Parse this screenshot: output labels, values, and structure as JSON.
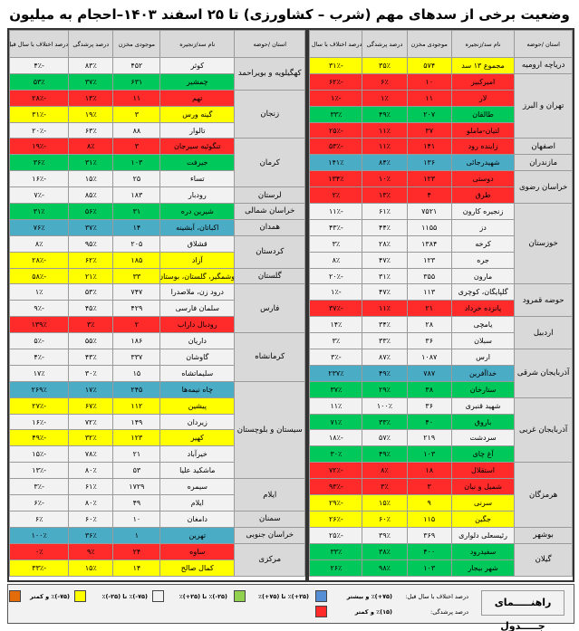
{
  "title": "وضعیت برخی از سدهای مهم (شرب – کشاورزی) تا ۲۵ اسفند ۱۴۰۳–احجام به میلیون مترمکعب",
  "columns": {
    "province": "استان /حوضه",
    "dam": "نام سد/زنجیره",
    "storage": "موجودی مخزن",
    "fill_pct": "درصد پرشدگی",
    "diff_pct": "درصد اختلاف با سال قبل"
  },
  "colors": {
    "yellow": "#ffff00",
    "red": "#ff2a2a",
    "green": "#00c85a",
    "blue": "#4bacc6",
    "white": "#f2f2f2",
    "header_gray": "#d9d9d9",
    "legend_orange": "#e36c09",
    "legend_green": "#92d050",
    "legend_blue": "#558ed5"
  },
  "right_table": [
    {
      "province": "دریاچه ارومیه",
      "rows": [
        {
          "dam": "مجموع ۱۳ سد",
          "storage": "۵۷۴",
          "fill": "۳۵٪",
          "diff": "-۳۱٪",
          "color": "yellow"
        }
      ]
    },
    {
      "province": "تهران و البرز",
      "rows": [
        {
          "dam": "امیرکبیر",
          "storage": "۱۰",
          "fill": "۶٪",
          "diff": "-۶۲٪",
          "color": "red"
        },
        {
          "dam": "لار",
          "storage": "۱۱",
          "fill": "۱٪",
          "diff": "-۱٪",
          "color": "red"
        },
        {
          "dam": "طالقان",
          "storage": "۲۰۷",
          "fill": "۴۹٪",
          "diff": "۳۳٪",
          "color": "green"
        },
        {
          "dam": "لتیان-ماملو",
          "storage": "۳۷",
          "fill": "۱۱٪",
          "diff": "-۲۵٪",
          "color": "red"
        }
      ]
    },
    {
      "province": "اصفهان",
      "rows": [
        {
          "dam": "زاینده رود",
          "storage": "۱۴۱",
          "fill": "۱۱٪",
          "diff": "-۵۳٪",
          "color": "red"
        }
      ]
    },
    {
      "province": "مازندران",
      "rows": [
        {
          "dam": "شهیدرجائی",
          "storage": "۱۳۶",
          "fill": "۸۴٪",
          "diff": "۱۴۱٪",
          "color": "blue"
        }
      ]
    },
    {
      "province": "خراسان رضوی",
      "rows": [
        {
          "dam": "دوستی",
          "storage": "۱۲۳",
          "fill": "۱۰٪",
          "diff": "۱۳۴٪",
          "color": "red"
        },
        {
          "dam": "طرق",
          "storage": "۴",
          "fill": "۱۳٪",
          "diff": "۲٪",
          "color": "red"
        }
      ]
    },
    {
      "province": "خوزستان",
      "rows": [
        {
          "dam": "زنجیره کارون",
          "storage": "۷۵۲۱",
          "fill": "۶۱٪",
          "diff": "-۱۱٪",
          "color": "white"
        },
        {
          "dam": "دز",
          "storage": "۱۱۵۵",
          "fill": "۴۴٪",
          "diff": "-۴۳٪",
          "color": "white"
        },
        {
          "dam": "کرخه",
          "storage": "۱۳۸۴",
          "fill": "۲۸٪",
          "diff": "۳٪",
          "color": "white"
        },
        {
          "dam": "جره",
          "storage": "۱۲۳",
          "fill": "۴۷٪",
          "diff": "۸٪",
          "color": "white"
        },
        {
          "dam": "مارون",
          "storage": "۳۵۵",
          "fill": "۳۱٪",
          "diff": "-۲۰٪",
          "color": "white"
        }
      ]
    },
    {
      "province": "حوضه قمرود",
      "rows": [
        {
          "dam": "گلپایگان، کوچری",
          "storage": "۱۱۳",
          "fill": "۴۷٪",
          "diff": "-۱٪",
          "color": "white"
        },
        {
          "dam": "پانزده خرداد",
          "storage": "۲۱",
          "fill": "۱۱٪",
          "diff": "-۳۷٪",
          "color": "red"
        }
      ]
    },
    {
      "province": "اردبیل",
      "rows": [
        {
          "dam": "یامچی",
          "storage": "۲۸",
          "fill": "۳۴٪",
          "diff": "۱۴٪",
          "color": "white"
        },
        {
          "dam": "سبلان",
          "storage": "۳۶",
          "fill": "۳۳٪",
          "diff": "۳٪",
          "color": "white"
        }
      ]
    },
    {
      "province": "آذربایجان شرقی",
      "rows": [
        {
          "dam": "ارس",
          "storage": "۱۰۸۷",
          "fill": "۸۷٪",
          "diff": "-۳٪",
          "color": "white"
        },
        {
          "dam": "خداآفرین",
          "storage": "۷۸۷",
          "fill": "۴۹٪",
          "diff": "۲۳۷٪",
          "color": "blue"
        },
        {
          "dam": "ستارخان",
          "storage": "۳۸",
          "fill": "۲۹٪",
          "diff": "۳۷٪",
          "color": "green"
        }
      ]
    },
    {
      "province": "آذربایجان غربی",
      "rows": [
        {
          "dam": "شهید قنبری",
          "storage": "۳۶",
          "fill": "۱۰۰٪",
          "diff": "۱۱٪",
          "color": "white"
        },
        {
          "dam": "باروق",
          "storage": "۴۰",
          "fill": "۳۳٪",
          "diff": "۷۱٪",
          "color": "green"
        },
        {
          "dam": "سردشت",
          "storage": "۲۱۹",
          "fill": "۵۷٪",
          "diff": "-۱۸٪",
          "color": "white"
        },
        {
          "dam": "آغ چای",
          "storage": "۱۰۳",
          "fill": "۴۹٪",
          "diff": "۳۰٪",
          "color": "green"
        }
      ]
    },
    {
      "province": "هرمزگان",
      "rows": [
        {
          "dam": "استقلال",
          "storage": "۱۸",
          "fill": "۸٪",
          "diff": "-۷۲٪",
          "color": "red"
        },
        {
          "dam": "شمیل و نیان",
          "storage": "۳",
          "fill": "۳٪",
          "diff": "-۹۳٪",
          "color": "red"
        },
        {
          "dam": "سرنی",
          "storage": "۹",
          "fill": "۱۵٪",
          "diff": "-۲۹٪",
          "color": "yellow"
        },
        {
          "dam": "جگین",
          "storage": "۱۱۵",
          "fill": "۶۰٪",
          "diff": "-۲۶٪",
          "color": "yellow"
        }
      ]
    },
    {
      "province": "بوشهر",
      "rows": [
        {
          "dam": "رئیسعلی دلواری",
          "storage": "۳۶۹",
          "fill": "۳۹٪",
          "diff": "-۲۵٪",
          "color": "white"
        }
      ]
    },
    {
      "province": "گیلان",
      "rows": [
        {
          "dam": "سفیدرود",
          "storage": "۴۰۰",
          "fill": "۳۸٪",
          "diff": "۳۳٪",
          "color": "green"
        },
        {
          "dam": "شهر بیجار",
          "storage": "۱۰۳",
          "fill": "۹۸٪",
          "diff": "۲۶٪",
          "color": "green"
        }
      ]
    }
  ],
  "left_table": [
    {
      "province": "کهگیلویه و بویراحمد",
      "rows": [
        {
          "dam": "کوثر",
          "storage": "۴۵۲",
          "fill": "۸۳٪",
          "diff": "-۴٪",
          "color": "white"
        },
        {
          "dam": "چمشیر",
          "storage": "۶۳۱",
          "fill": "۳۷٪",
          "diff": "۵۳٪",
          "color": "green"
        }
      ]
    },
    {
      "province": "زنجان",
      "rows": [
        {
          "dam": "تهم",
          "storage": "۱۱",
          "fill": "۱۳٪",
          "diff": "-۲۸٪",
          "color": "red"
        },
        {
          "dam": "گینه ورس",
          "storage": "۳",
          "fill": "۱۹٪",
          "diff": "-۳۱٪",
          "color": "yellow"
        },
        {
          "dam": "تالوار",
          "storage": "۸۸",
          "fill": "۶۳٪",
          "diff": "-۲۰٪",
          "color": "white"
        }
      ]
    },
    {
      "province": "کرمان",
      "rows": [
        {
          "dam": "تنگوئیه سیرجان",
          "storage": "۳",
          "fill": "۸٪",
          "diff": "-۱۹٪",
          "color": "red"
        },
        {
          "dam": "جیرفت",
          "storage": "۱۰۳",
          "fill": "۳۱٪",
          "diff": "۳۶٪",
          "color": "green"
        },
        {
          "dam": "تساء",
          "storage": "۲۵",
          "fill": "۱۵٪",
          "diff": "-۱۶٪",
          "color": "white"
        }
      ]
    },
    {
      "province": "لرستان",
      "rows": [
        {
          "dam": "رودبار",
          "storage": "۱۸۳",
          "fill": "۸۵٪",
          "diff": "-۷٪",
          "color": "white"
        }
      ]
    },
    {
      "province": "خراسان شمالی",
      "rows": [
        {
          "dam": "شیرین دره",
          "storage": "۳۱",
          "fill": "۵۶٪",
          "diff": "۳۱٪",
          "color": "green"
        }
      ]
    },
    {
      "province": "همدان",
      "rows": [
        {
          "dam": "اکباتان، آبشینه",
          "storage": "۱۴",
          "fill": "۳۷٪",
          "diff": "۷۶٪",
          "color": "blue"
        }
      ]
    },
    {
      "province": "کردستان",
      "rows": [
        {
          "dam": "قشلاق",
          "storage": "۲۰۵",
          "fill": "۹۵٪",
          "diff": "۸٪",
          "color": "white"
        },
        {
          "dam": "آزاد",
          "storage": "۱۸۵",
          "fill": "۶۲٪",
          "diff": "-۲۸٪",
          "color": "yellow"
        }
      ]
    },
    {
      "province": "گلستان",
      "rows": [
        {
          "dam": "وشمگیر، گلستان، بوستان",
          "storage": "۳۳",
          "fill": "۲۱٪",
          "diff": "-۵۸٪",
          "color": "yellow"
        }
      ]
    },
    {
      "province": "فارس",
      "rows": [
        {
          "dam": "درود زن، ملاصدرا",
          "storage": "۷۴۷",
          "fill": "۵۳٪",
          "diff": "۱٪",
          "color": "white"
        },
        {
          "dam": "سلمان فارسی",
          "storage": "۴۲۹",
          "fill": "۴۵٪",
          "diff": "-۹٪",
          "color": "white"
        },
        {
          "dam": "رودبال داراب",
          "storage": "۲",
          "fill": "۳٪",
          "diff": "۱۳۹٪",
          "color": "red"
        }
      ]
    },
    {
      "province": "کرمانشاه",
      "rows": [
        {
          "dam": "داریان",
          "storage": "۱۸۶",
          "fill": "۵۵٪",
          "diff": "-۵٪",
          "color": "white"
        },
        {
          "dam": "گاوشان",
          "storage": "۳۳۷",
          "fill": "۴۳٪",
          "diff": "-۴٪",
          "color": "white"
        },
        {
          "dam": "سلیماتشاه",
          "storage": "۱۵",
          "fill": "۳۰٪",
          "diff": "۱۷٪",
          "color": "white"
        }
      ]
    },
    {
      "province": "سیستان و بلوچستان",
      "rows": [
        {
          "dam": "چاه نیمه‌ها",
          "storage": "۲۴۵",
          "fill": "۱۷٪",
          "diff": "۲۶۹٪",
          "color": "blue"
        },
        {
          "dam": "پیشین",
          "storage": "۱۱۲",
          "fill": "۶۷٪",
          "diff": "-۲۷٪",
          "color": "yellow"
        },
        {
          "dam": "زیردان",
          "storage": "۱۴۹",
          "fill": "۷۲٪",
          "diff": "-۱۶٪",
          "color": "white"
        },
        {
          "dam": "کهیر",
          "storage": "۱۲۳",
          "fill": "۳۲٪",
          "diff": "-۴۹٪",
          "color": "yellow"
        },
        {
          "dam": "خیرآباد",
          "storage": "۲۱",
          "fill": "۷۸٪",
          "diff": "-۱۵٪",
          "color": "white"
        },
        {
          "dam": "ماشکید علیا",
          "storage": "۵۳",
          "fill": "۸۰٪",
          "diff": "-۱۳٪",
          "color": "white"
        }
      ]
    },
    {
      "province": "ایلام",
      "rows": [
        {
          "dam": "سیمره",
          "storage": "۱۷۲۹",
          "fill": "۶۱٪",
          "diff": "-۳٪",
          "color": "white"
        },
        {
          "dam": "ایلام",
          "storage": "۴۹",
          "fill": "۸۰٪",
          "diff": "-۶٪",
          "color": "white"
        }
      ]
    },
    {
      "province": "سمنان",
      "rows": [
        {
          "dam": "دامغان",
          "storage": "۱۰",
          "fill": "۶۰٪",
          "diff": "۶٪",
          "color": "white"
        }
      ]
    },
    {
      "province": "خراسان جنوبی",
      "rows": [
        {
          "dam": "تهرین",
          "storage": "۱",
          "fill": "۳۶٪",
          "diff": "۱۰۰٪",
          "color": "blue"
        }
      ]
    },
    {
      "province": "مرکزی",
      "rows": [
        {
          "dam": "ساوه",
          "storage": "۲۴",
          "fill": "۹٪",
          "diff": "۰٪",
          "color": "red"
        },
        {
          "dam": "کمال صالح",
          "storage": "۱۴",
          "fill": "۱۵٪",
          "diff": "-۳۳٪",
          "color": "yellow"
        }
      ]
    }
  ],
  "legend": {
    "title": "راهنـــــمای جـــــدول",
    "diff_label": "درصد اختلاف با سال قبل:",
    "fill_label": "درصد پرشدگی:",
    "items": [
      {
        "text": "(۷۵+)٪ و بیشتر",
        "color": "#558ed5"
      },
      {
        "text": "(۱۵)٪ و کمتر",
        "color": "#ff2a2a"
      },
      {
        "text": "(۲۵+)٪ تا (۷۵+)٪",
        "color": "#92d050"
      },
      {
        "text": "(۲۵-)٪ تا (۲۵+)٪",
        "color": "#f2f2f2"
      },
      {
        "text": "(۷۵-)٪ تا (۲۵-)٪",
        "color": "#ffff00"
      },
      {
        "text": "(۷۵-)٪ و کمتر",
        "color": "#e36c09"
      }
    ]
  }
}
